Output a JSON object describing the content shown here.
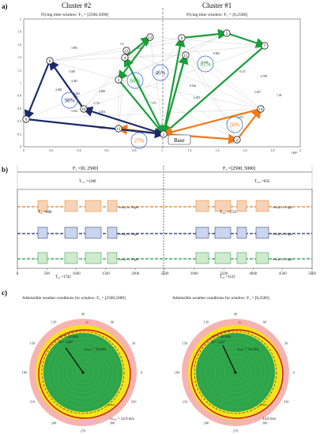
{
  "panel_a": {
    "label": "a)",
    "cluster_left_title": "Cluster #2",
    "cluster_right_title": "Cluster #1",
    "window_left": "Flying time window: F₂ = [2500,5000]",
    "window_right": "Flying time window: F₁ = [0,2500]",
    "base_label": "Base",
    "axis_exp": "×10⁴",
    "nodes": [
      "1",
      "2",
      "3",
      "4",
      "5",
      "6",
      "7",
      "8",
      "9",
      "10",
      "11",
      "12",
      "13",
      "14",
      "15"
    ],
    "percent_labels": [
      "98%",
      "60%",
      "46%",
      "81%",
      "50%",
      "27%"
    ],
    "edge_labels": [
      "3.981",
      "5.029",
      "4.382",
      "8.382",
      "4.308",
      "3.162",
      "3.712",
      "2.828",
      "4.404",
      "2.236",
      "7.071",
      "8.544",
      "4.123",
      "6.403",
      "8.062",
      "7.28",
      "5.657",
      "6.708",
      "3.6",
      "6.5",
      "8.137",
      "4.472"
    ],
    "x_ticks": [
      "0",
      "0.2",
      "0.4",
      "0.6",
      "0.8",
      "1",
      "1.2",
      "1.4",
      "1.6",
      "1.8",
      "2"
    ],
    "y_ticks": [
      "0",
      "0.2",
      "0.4",
      "0.6",
      "0.8",
      "1",
      "1.2",
      "1.4",
      "1.6",
      "1.8",
      "2"
    ]
  },
  "panel_b": {
    "label": "b)",
    "f1_label": "F₁ =[0, 2500]",
    "f2_label": "F₂ =[2500, 5000]",
    "durations": [
      "T₁₁₁ =1200",
      "T₂₁₂ =632",
      "T₂₁ =860",
      "T₂₁₂ =1721",
      "T₁₃ =1742",
      "T₂₃ =1122"
    ],
    "ready_label": "ready to flight",
    "x_ticks": [
      "0",
      "500",
      "1000",
      "1500",
      "2000",
      "2500",
      "3000",
      "3500",
      "4000",
      "4500",
      "5000"
    ]
  },
  "panel_c": {
    "label": "c)",
    "left_title": "Admissible weather conditions for window: F₂ = [2500,5000]",
    "right_title": "Admissible weather conditions for window: F₁ = [0,2500]",
    "left": {
      "vw": "vᵂ = 12 m/s",
      "theta": "θ = 150°",
      "vmin": "vₘᵢₙ = 12 m/s",
      "vmax": "vₘₐₓ = 14.9 m/s"
    },
    "right": {
      "vw": "vᵂ = 10 m/s",
      "theta": "θ = 115°",
      "vmin": "vₘᵢₙ = 12 m/s",
      "vmax": "14.6 m/s"
    },
    "angle_ticks": [
      "90",
      "60",
      "30",
      "0",
      "330",
      "300",
      "270",
      "240",
      "210",
      "180",
      "150",
      "120"
    ],
    "speed_tick": "15",
    "vmax_wind": "vᵂᴹᴬˣ"
  },
  "colors": {
    "green": "#1a9e3a",
    "orange": "#ef7a1a",
    "navy": "#1b2a6b",
    "polar_green": "#2fa54a",
    "polar_yellow": "#f6e21c",
    "polar_pink": "#f6b4b0",
    "polar_red": "#cc1111"
  }
}
